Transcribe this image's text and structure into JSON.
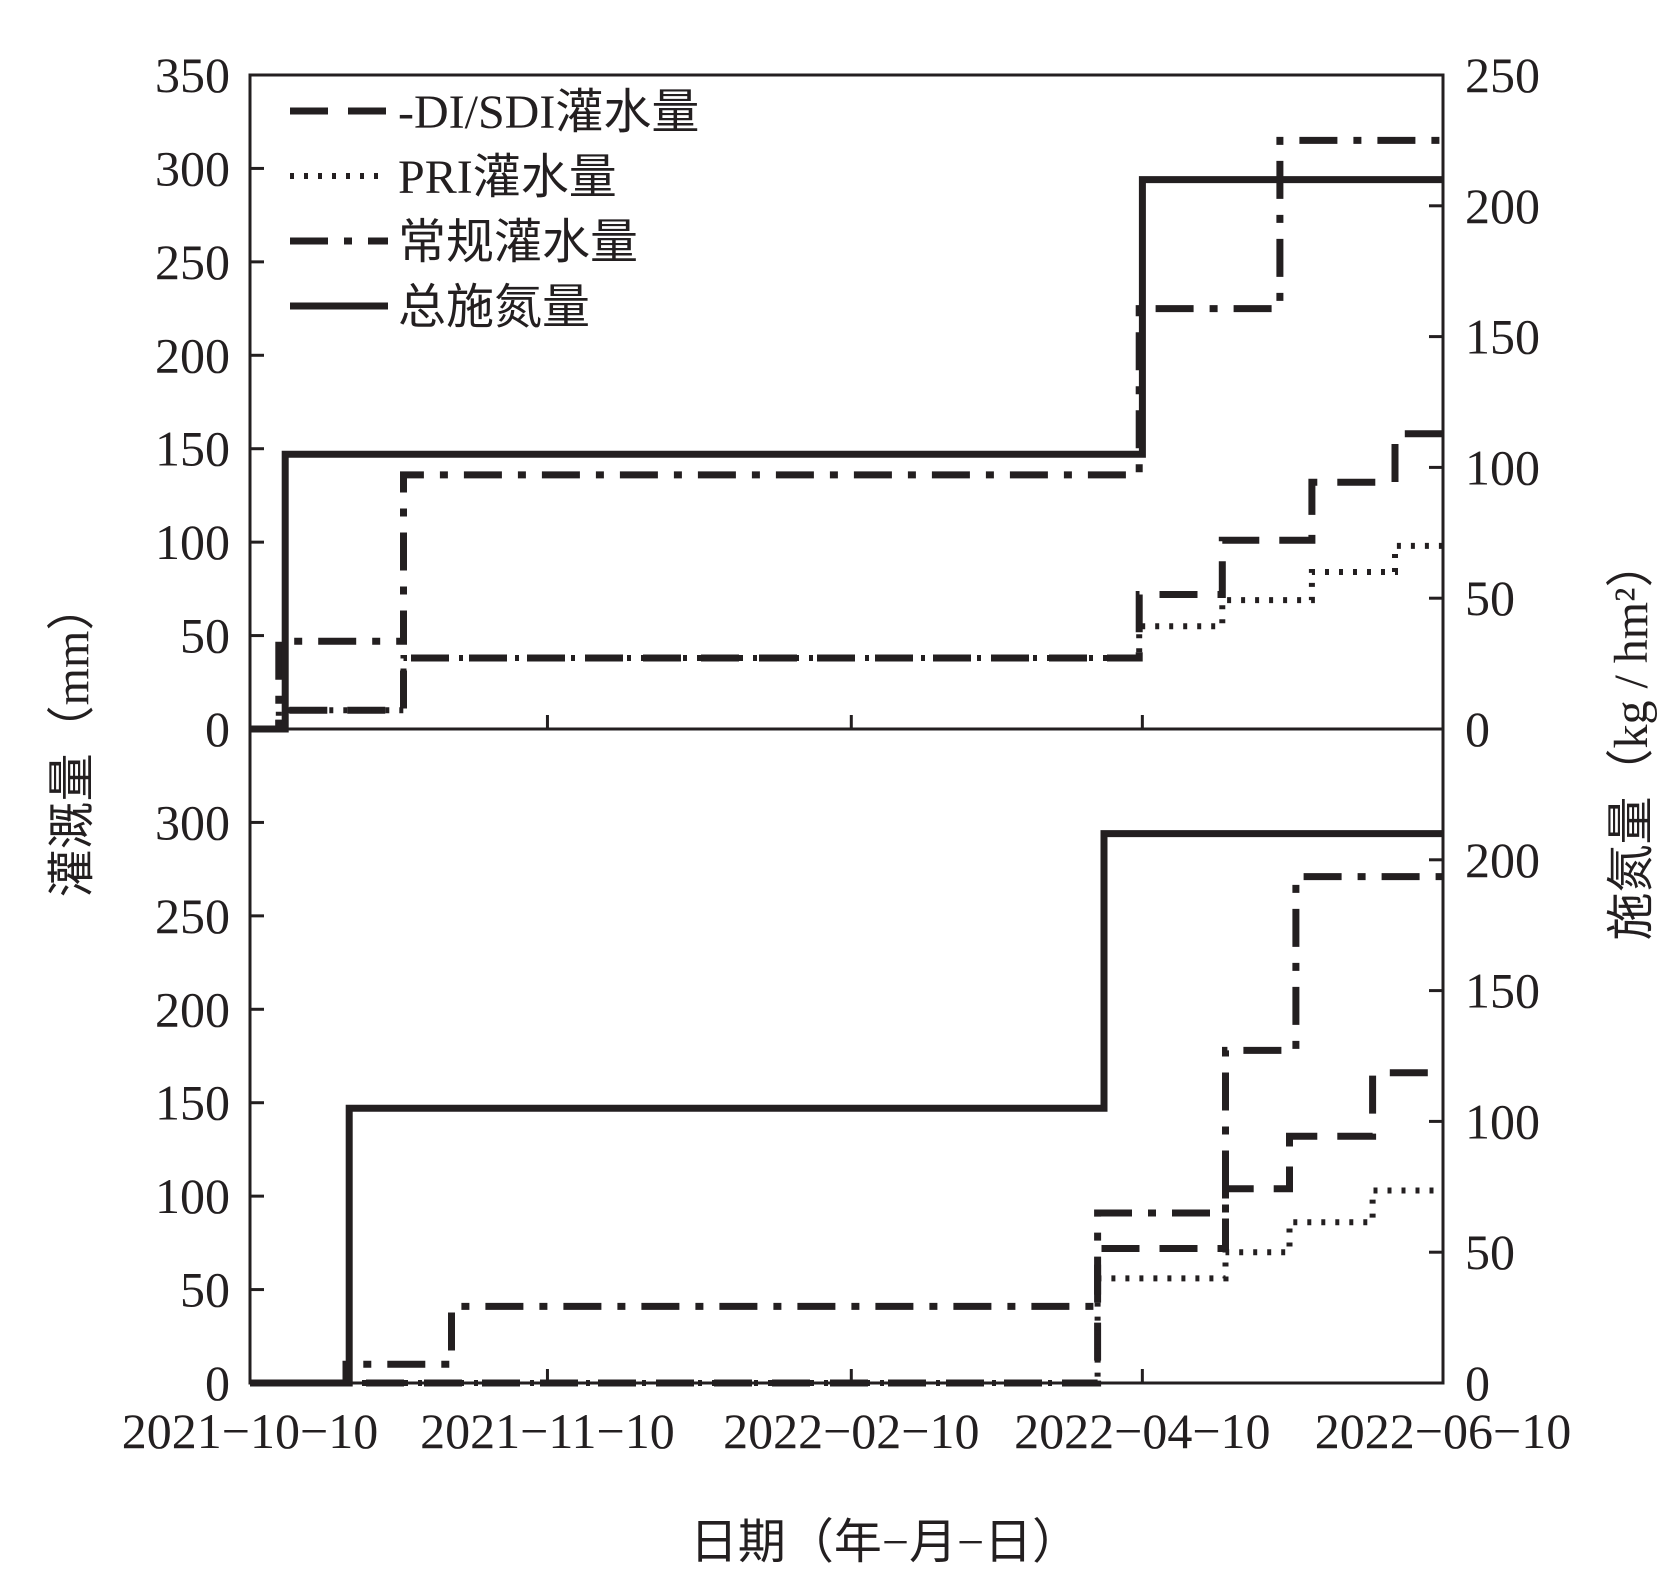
{
  "chart_data": {
    "type": "line",
    "subtype": "step",
    "panels": [
      {
        "ylim": [
          0,
          350
        ],
        "y_ticks": [
          0,
          50,
          100,
          150,
          200,
          250,
          300,
          350
        ],
        "y2lim": [
          0,
          250
        ],
        "y2_ticks": [
          0,
          50,
          100,
          150,
          200,
          250
        ],
        "series": [
          {
            "name": "-DI/SDI灌水量",
            "style": "dashed",
            "axis": "left",
            "points": [
              [
                0,
                0
              ],
              [
                9,
                0
              ],
              [
                9,
                10
              ],
              [
                48,
                10
              ],
              [
                48,
                38
              ],
              [
                278,
                38
              ],
              [
                278,
                72
              ],
              [
                304,
                72
              ],
              [
                304,
                101
              ],
              [
                332,
                101
              ],
              [
                332,
                132
              ],
              [
                358,
                132
              ],
              [
                358,
                158
              ],
              [
                373,
                158
              ]
            ]
          },
          {
            "name": "PRI灌水量",
            "style": "dotted",
            "axis": "left",
            "points": [
              [
                0,
                0
              ],
              [
                9,
                0
              ],
              [
                9,
                10
              ],
              [
                48,
                10
              ],
              [
                48,
                38
              ],
              [
                278,
                38
              ],
              [
                278,
                55
              ],
              [
                304,
                55
              ],
              [
                304,
                69
              ],
              [
                332,
                69
              ],
              [
                332,
                84
              ],
              [
                358,
                84
              ],
              [
                358,
                98
              ],
              [
                373,
                98
              ]
            ]
          },
          {
            "name": "常规灌水量",
            "style": "dashdot",
            "axis": "left",
            "points": [
              [
                0,
                0
              ],
              [
                9,
                0
              ],
              [
                9,
                47
              ],
              [
                48,
                47
              ],
              [
                48,
                136
              ],
              [
                278,
                136
              ],
              [
                278,
                225
              ],
              [
                322,
                225
              ],
              [
                322,
                315
              ],
              [
                373,
                315
              ]
            ]
          },
          {
            "name": "总施氮量",
            "style": "solid",
            "axis": "right",
            "points": [
              [
                0,
                0
              ],
              [
                11,
                0
              ],
              [
                11,
                105
              ],
              [
                279,
                105
              ],
              [
                279,
                210
              ],
              [
                373,
                210
              ]
            ]
          }
        ]
      },
      {
        "ylim": [
          0,
          350
        ],
        "y_ticks": [
          0,
          50,
          100,
          150,
          200,
          250,
          300
        ],
        "y2lim": [
          0,
          250
        ],
        "y2_ticks": [
          0,
          50,
          100,
          150,
          200
        ],
        "series": [
          {
            "name": "-DI/SDI灌水量",
            "style": "dashed",
            "axis": "left",
            "points": [
              [
                0,
                0
              ],
              [
                265,
                0
              ],
              [
                265,
                72
              ],
              [
                305,
                72
              ],
              [
                305,
                104
              ],
              [
                325,
                104
              ],
              [
                325,
                132
              ],
              [
                351,
                132
              ],
              [
                351,
                166
              ],
              [
                373,
                166
              ]
            ]
          },
          {
            "name": "PRI灌水量",
            "style": "dotted",
            "axis": "left",
            "points": [
              [
                0,
                0
              ],
              [
                265,
                0
              ],
              [
                265,
                56
              ],
              [
                305,
                56
              ],
              [
                305,
                70
              ],
              [
                325,
                70
              ],
              [
                325,
                86
              ],
              [
                351,
                86
              ],
              [
                351,
                103
              ],
              [
                373,
                103
              ]
            ]
          },
          {
            "name": "常规灌水量",
            "style": "dashdot",
            "axis": "left",
            "points": [
              [
                0,
                0
              ],
              [
                30,
                0
              ],
              [
                30,
                10
              ],
              [
                63,
                10
              ],
              [
                63,
                41
              ],
              [
                265,
                41
              ],
              [
                265,
                91
              ],
              [
                305,
                91
              ],
              [
                305,
                178
              ],
              [
                327,
                178
              ],
              [
                327,
                271
              ],
              [
                373,
                271
              ]
            ]
          },
          {
            "name": "总施氮量",
            "style": "solid",
            "axis": "right",
            "points": [
              [
                0,
                0
              ],
              [
                31,
                0
              ],
              [
                31,
                105
              ],
              [
                267,
                105
              ],
              [
                267,
                210
              ],
              [
                373,
                210
              ]
            ]
          }
        ]
      }
    ],
    "xlim": [
      0,
      373
    ],
    "x_tick_positions": [
      0,
      93,
      188,
      279,
      373
    ],
    "x_tick_labels": [
      "2021−10−10",
      "2021−11−10",
      "2022−02−10",
      "2022−04−10",
      "2022−06−10"
    ],
    "xlabel": "日期（年−月−日）",
    "ylabel": "灌溉量（mm）",
    "y2label": "施氮量（kg / hm²）",
    "legend": [
      "-DI/SDI灌水量",
      "PRI灌水量",
      "常规灌水量",
      "总施氮量"
    ],
    "legend_position": "top-left",
    "grid": false
  }
}
